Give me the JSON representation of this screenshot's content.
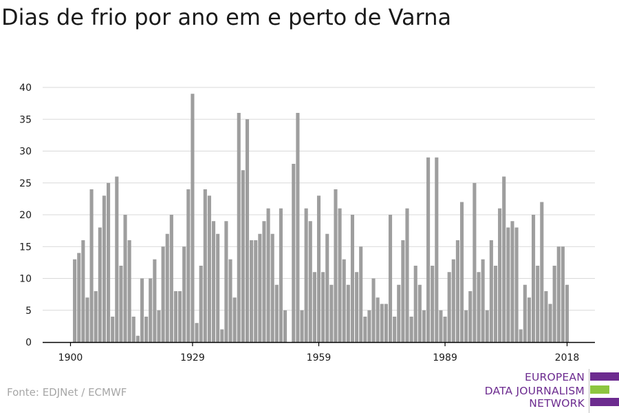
{
  "title": "Dias de frio por ano em e perto de Varna",
  "source": "Fonte: EDJNet / ECMWF",
  "logo": {
    "line1": "EUROPEAN",
    "line2": "DATA JOURNALISM",
    "line3": "NETWORK"
  },
  "colors": {
    "bar": "#9e9e9e",
    "grid": "#d9d9d9",
    "axis": "#000000",
    "logo_purple": "#6c2b8f",
    "logo_green": "#8dc63f"
  },
  "chart_data": {
    "type": "bar",
    "title": "Dias de frio por ano em e perto de Varna",
    "xlabel": "",
    "ylabel": "",
    "ylim": [
      0,
      40
    ],
    "yticks": [
      0,
      5,
      10,
      15,
      20,
      25,
      30,
      35,
      40
    ],
    "xticks": [
      1900,
      1929,
      1959,
      1989,
      2018
    ],
    "grid": true,
    "x": [
      1900,
      1901,
      1902,
      1903,
      1904,
      1905,
      1906,
      1907,
      1908,
      1909,
      1910,
      1911,
      1912,
      1913,
      1914,
      1915,
      1916,
      1917,
      1918,
      1919,
      1920,
      1921,
      1922,
      1923,
      1924,
      1925,
      1926,
      1927,
      1928,
      1929,
      1930,
      1931,
      1932,
      1933,
      1934,
      1935,
      1936,
      1937,
      1938,
      1939,
      1940,
      1941,
      1942,
      1943,
      1944,
      1945,
      1946,
      1947,
      1948,
      1949,
      1950,
      1951,
      1952,
      1953,
      1954,
      1955,
      1956,
      1957,
      1958,
      1959,
      1960,
      1961,
      1962,
      1963,
      1964,
      1965,
      1966,
      1967,
      1968,
      1969,
      1970,
      1971,
      1972,
      1973,
      1974,
      1975,
      1976,
      1977,
      1978,
      1979,
      1980,
      1981,
      1982,
      1983,
      1984,
      1985,
      1986,
      1987,
      1988,
      1989,
      1990,
      1991,
      1992,
      1993,
      1994,
      1995,
      1996,
      1997,
      1998,
      1999,
      2000,
      2001,
      2002,
      2003,
      2004,
      2005,
      2006,
      2007,
      2008,
      2009,
      2010,
      2011,
      2012,
      2013,
      2014,
      2015,
      2016,
      2017,
      2018
    ],
    "values": [
      0,
      13,
      14,
      16,
      7,
      24,
      8,
      18,
      23,
      25,
      4,
      26,
      12,
      20,
      16,
      4,
      1,
      10,
      4,
      10,
      13,
      5,
      15,
      17,
      20,
      8,
      8,
      15,
      24,
      39,
      3,
      12,
      24,
      23,
      19,
      17,
      2,
      19,
      13,
      7,
      36,
      27,
      35,
      16,
      16,
      17,
      19,
      21,
      17,
      9,
      21,
      5,
      0,
      28,
      36,
      5,
      21,
      19,
      11,
      23,
      11,
      17,
      9,
      24,
      21,
      13,
      9,
      20,
      11,
      15,
      4,
      5,
      10,
      7,
      6,
      6,
      20,
      4,
      9,
      16,
      21,
      4,
      12,
      9,
      5,
      29,
      12,
      29,
      5,
      4,
      11,
      13,
      16,
      22,
      5,
      8,
      25,
      11,
      13,
      5,
      16,
      12,
      21,
      26,
      18,
      19,
      18,
      2,
      9,
      7,
      20,
      12,
      22,
      8,
      6,
      12,
      15,
      15,
      9
    ]
  }
}
